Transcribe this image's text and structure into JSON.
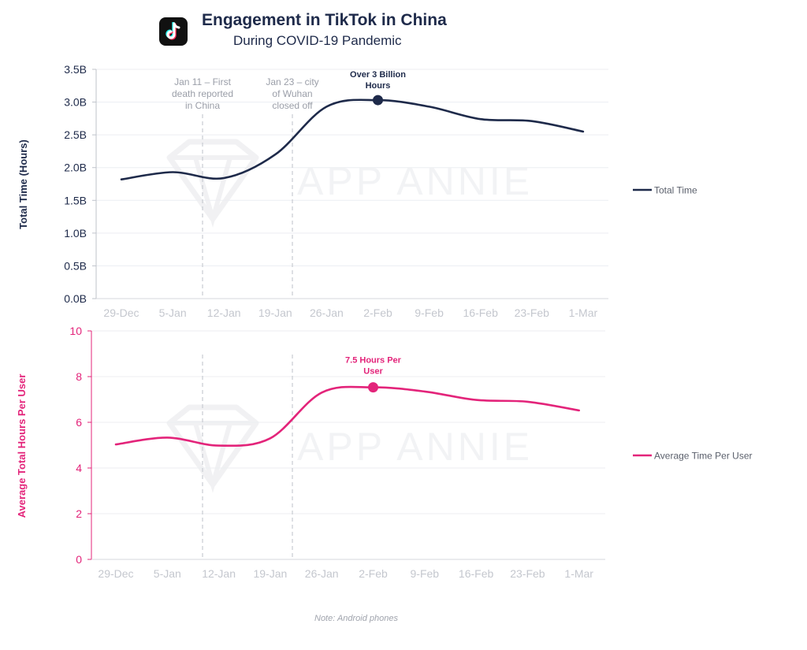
{
  "header": {
    "title": "Engagement in TikTok in China",
    "subtitle": "During COVID-19 Pandemic",
    "logo_icon": "tiktok-logo-icon"
  },
  "note": "Note: Android phones",
  "watermark": "APP ANNIE",
  "colors": {
    "navy": "#1e2a4a",
    "pink": "#e3247a",
    "grid": "#eceef2",
    "tick": "#c4c7ce",
    "annotation": "#9a9ea8"
  },
  "events": [
    {
      "x": "Jan 11",
      "lines": [
        "Jan 11 – First",
        "death reported",
        "in China"
      ]
    },
    {
      "x": "Jan 23",
      "lines": [
        "Jan 23 – city",
        "of Wuhan",
        "closed off"
      ]
    }
  ],
  "chart_data": [
    {
      "type": "line",
      "ylabel": "Total Time (Hours)",
      "x_tick_labels": [
        "29-Dec",
        "5-Jan",
        "12-Jan",
        "19-Jan",
        "26-Jan",
        "2-Feb",
        "9-Feb",
        "16-Feb",
        "23-Feb",
        "1-Mar"
      ],
      "y_tick_labels": [
        "0.0B",
        "0.5B",
        "1.0B",
        "1.5B",
        "2.0B",
        "2.5B",
        "3.0B",
        "3.5B"
      ],
      "ylim": [
        0,
        3.5
      ],
      "series": [
        {
          "name": "Total Time",
          "color": "#1e2a4a",
          "x": [
            "29-Dec",
            "5-Jan",
            "12-Jan",
            "19-Jan",
            "26-Jan",
            "2-Feb",
            "9-Feb",
            "16-Feb",
            "23-Feb",
            "1-Mar"
          ],
          "values": [
            1.82,
            1.93,
            1.84,
            2.2,
            2.93,
            3.03,
            2.93,
            2.74,
            2.71,
            2.55
          ]
        }
      ],
      "highlight": {
        "x": "2-Feb",
        "value": 3.03,
        "label": [
          "Over 3 Billion",
          "Hours"
        ]
      },
      "legend_position": "right",
      "grid": true
    },
    {
      "type": "line",
      "ylabel": "Average Total Hours Per User",
      "x_tick_labels": [
        "29-Dec",
        "5-Jan",
        "12-Jan",
        "19-Jan",
        "26-Jan",
        "2-Feb",
        "9-Feb",
        "16-Feb",
        "23-Feb",
        "1-Mar"
      ],
      "y_tick_labels": [
        "0",
        "2",
        "4",
        "6",
        "8",
        "10"
      ],
      "ylim": [
        0,
        10
      ],
      "series": [
        {
          "name": "Average Time Per User",
          "color": "#e3247a",
          "x": [
            "29-Dec",
            "5-Jan",
            "12-Jan",
            "19-Jan",
            "26-Jan",
            "2-Feb",
            "9-Feb",
            "16-Feb",
            "23-Feb",
            "1-Mar"
          ],
          "values": [
            5.03,
            5.33,
            4.98,
            5.3,
            7.3,
            7.53,
            7.35,
            6.98,
            6.9,
            6.52
          ]
        }
      ],
      "highlight": {
        "x": "2-Feb",
        "value": 7.53,
        "label": [
          "7.5 Hours Per",
          "User"
        ]
      },
      "legend_position": "right",
      "grid": true
    }
  ]
}
